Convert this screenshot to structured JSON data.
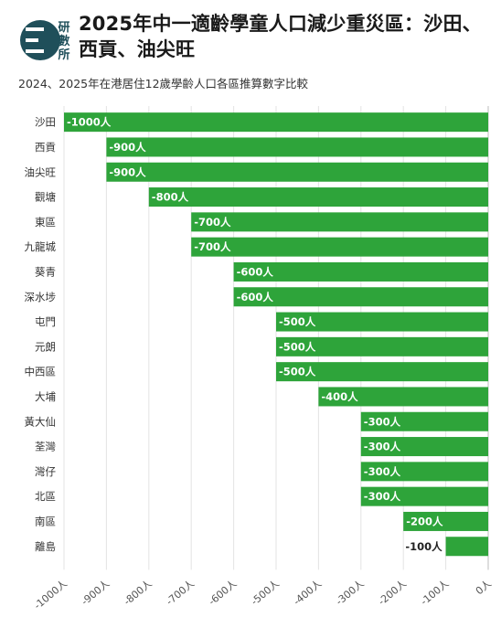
{
  "logo": {
    "text_lines": [
      "研",
      "數",
      "所"
    ],
    "color": "#1f4f5a"
  },
  "title": "2025年中一適齡學童人口減少重災區：沙田、西貢、油尖旺",
  "subtitle": "2024、2025年在港居住12歲學齡人口各區推算數字比較",
  "chart_data": {
    "type": "bar",
    "orientation": "horizontal",
    "categories": [
      "沙田",
      "西貢",
      "油尖旺",
      "觀塘",
      "東區",
      "九龍城",
      "葵青",
      "深水埗",
      "屯門",
      "元朗",
      "中西區",
      "大埔",
      "黃大仙",
      "荃灣",
      "灣仔",
      "北區",
      "南區",
      "離島"
    ],
    "values": [
      -1000,
      -900,
      -900,
      -800,
      -700,
      -700,
      -600,
      -600,
      -500,
      -500,
      -500,
      -400,
      -300,
      -300,
      -300,
      -300,
      -200,
      -100
    ],
    "data_labels": [
      "-1000人",
      "-900人",
      "-900人",
      "-800人",
      "-700人",
      "-700人",
      "-600人",
      "-600人",
      "-500人",
      "-500人",
      "-500人",
      "-400人",
      "-300人",
      "-300人",
      "-300人",
      "-300人",
      "-200人",
      "-100人"
    ],
    "xlim": [
      -1000,
      0
    ],
    "xticks": [
      -1000,
      -900,
      -800,
      -700,
      -600,
      -500,
      -400,
      -300,
      -200,
      -100,
      0
    ],
    "xtick_labels": [
      "-1000人",
      "-900人",
      "-800人",
      "-700人",
      "-600人",
      "-500人",
      "-400人",
      "-300人",
      "-200人",
      "-100人",
      "0人"
    ],
    "bar_color": "#2ea43a",
    "grid": true,
    "xlabel": "",
    "ylabel": ""
  }
}
